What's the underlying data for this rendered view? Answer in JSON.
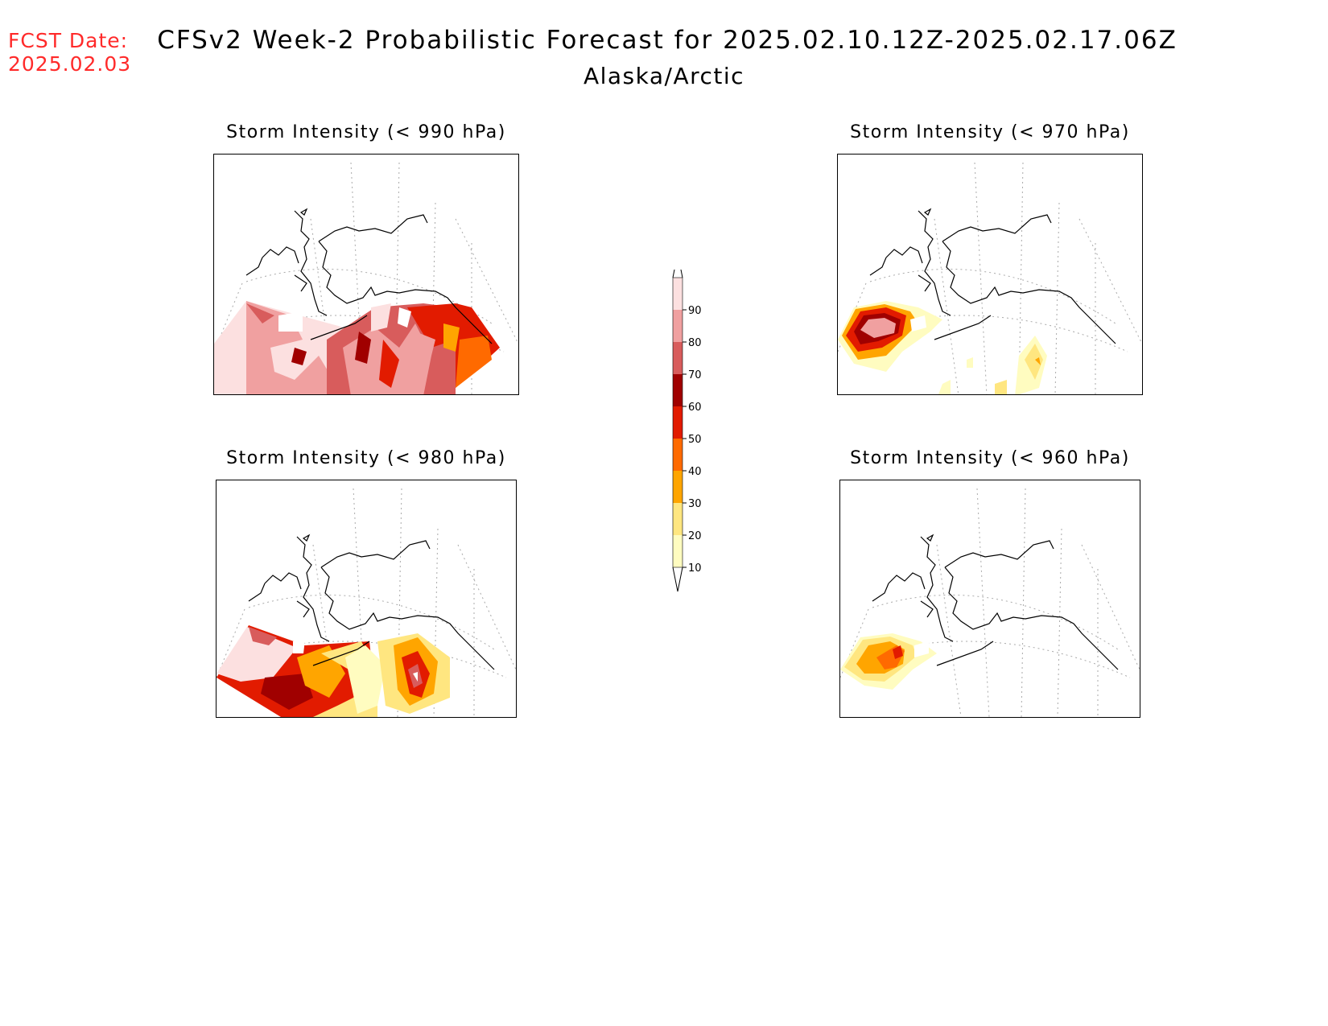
{
  "header": {
    "fcst_label": "FCST Date:",
    "fcst_date": "2025.02.03",
    "title": "CFSv2 Week-2 Probabilistic Forecast for 2025.02.10.12Z-2025.02.17.06Z",
    "region": "Alaska/Arctic"
  },
  "panels": [
    {
      "title": "Storm Intensity (< 990 hPa)"
    },
    {
      "title": "Storm Intensity (< 970 hPa)"
    },
    {
      "title": "Storm Intensity (< 980 hPa)"
    },
    {
      "title": "Storm Intensity (< 960 hPa)"
    }
  ],
  "colorbar": {
    "levels": [
      "10",
      "20",
      "30",
      "40",
      "50",
      "60",
      "70",
      "80",
      "90"
    ],
    "colors": [
      "#fffcc0",
      "#ffe680",
      "#ffa500",
      "#ff6a00",
      "#e21b00",
      "#a00000",
      "#d85c5c",
      "#f0a0a0",
      "#fce0e0"
    ]
  }
}
